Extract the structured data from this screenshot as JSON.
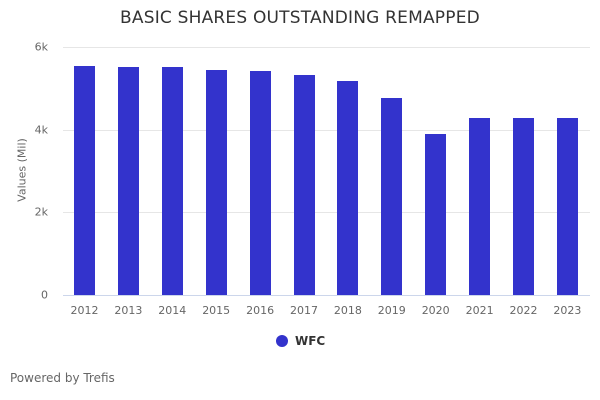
{
  "chart_data": {
    "type": "bar",
    "title": "BASIC SHARES OUTSTANDING REMAPPED",
    "xlabel": "",
    "ylabel": "Values (Mil)",
    "ylim": [
      0,
      6000
    ],
    "yticks": [
      "0",
      "2k",
      "4k",
      "6k"
    ],
    "grid": true,
    "legend_position": "bottom-center",
    "categories": [
      "2012",
      "2013",
      "2014",
      "2015",
      "2016",
      "2017",
      "2018",
      "2019",
      "2020",
      "2021",
      "2022",
      "2023"
    ],
    "series": [
      {
        "name": "WFC",
        "color": "#3333cc",
        "values": [
          5540,
          5515,
          5515,
          5445,
          5420,
          5320,
          5180,
          4765,
          3895,
          4285,
          4285,
          4285
        ]
      }
    ]
  },
  "footer": {
    "text": "Powered by Trefis"
  }
}
